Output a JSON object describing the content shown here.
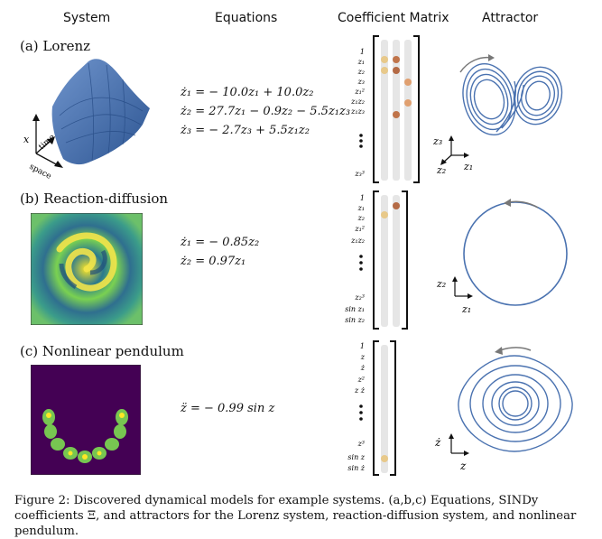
{
  "headers": {
    "system": "System",
    "equations": "Equations",
    "coef": "Coefficient Matrix",
    "attractor": "Attractor"
  },
  "rows": [
    {
      "label": "(a) Lorenz",
      "equations": [
        "ż₁ = − 10.0z₁ + 10.0z₂",
        "ż₂ = 27.7z₁ − 0.9z₂ − 5.5z₁z₃",
        "ż₃ = − 2.7z₃ + 5.5z₁z₂"
      ],
      "library": [
        "1",
        "z₁",
        "z₂",
        "z₃",
        "z₁²",
        "z₁z₂",
        "z₁z₃",
        "z₃³"
      ],
      "axes": {
        "x": "x",
        "time": "time",
        "space": "space",
        "a1": "z₃",
        "a2": "z₂",
        "a3": "z₁"
      }
    },
    {
      "label": "(b) Reaction-diffusion",
      "equations": [
        "ż₁ = − 0.85z₂",
        "ż₂ = 0.97z₁"
      ],
      "library": [
        "1",
        "z₁",
        "z₂",
        "z₁²",
        "z₁z₂",
        "z₂³",
        "sin z₁",
        "sin z₂"
      ],
      "axes": {
        "a1": "z₂",
        "a2": "z₁"
      }
    },
    {
      "label": "(c) Nonlinear pendulum",
      "equations": [
        "z̈ = − 0.99 sin z"
      ],
      "library": [
        "1",
        "z",
        "ż",
        "z²",
        "z ż",
        "z³",
        "sin z",
        "sin ż"
      ],
      "axes": {
        "a1": "ż",
        "a2": "z"
      }
    }
  ],
  "caption": "Figure 2: Discovered dynamical models for example systems. (a,b,c) Equations, SINDy coefficients Ξ, and attractors for the Lorenz system, reaction-diffusion system, and nonlinear pendulum.",
  "colors": {
    "blue": "#4a72b0",
    "coef1": "#e8c98a",
    "coef2": "#c0744a",
    "coef3": "#e0a070",
    "col": "#e6e6e6"
  }
}
